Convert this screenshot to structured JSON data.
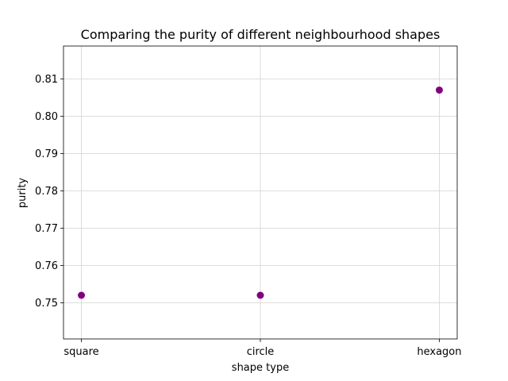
{
  "chart_data": {
    "type": "scatter",
    "title": "Comparing the purity of different neighbourhood shapes",
    "xlabel": "shape type",
    "ylabel": "purity",
    "categories": [
      "square",
      "circle",
      "hexagon"
    ],
    "values": [
      0.752,
      0.752,
      0.807
    ],
    "ylim": [
      0.7403,
      0.8188
    ],
    "yticks": [
      0.75,
      0.76,
      0.77,
      0.78,
      0.79,
      0.8,
      0.81
    ],
    "ytick_labels": [
      "0.75",
      "0.76",
      "0.77",
      "0.78",
      "0.79",
      "0.80",
      "0.81"
    ],
    "grid": true,
    "marker_color": "#800080"
  }
}
